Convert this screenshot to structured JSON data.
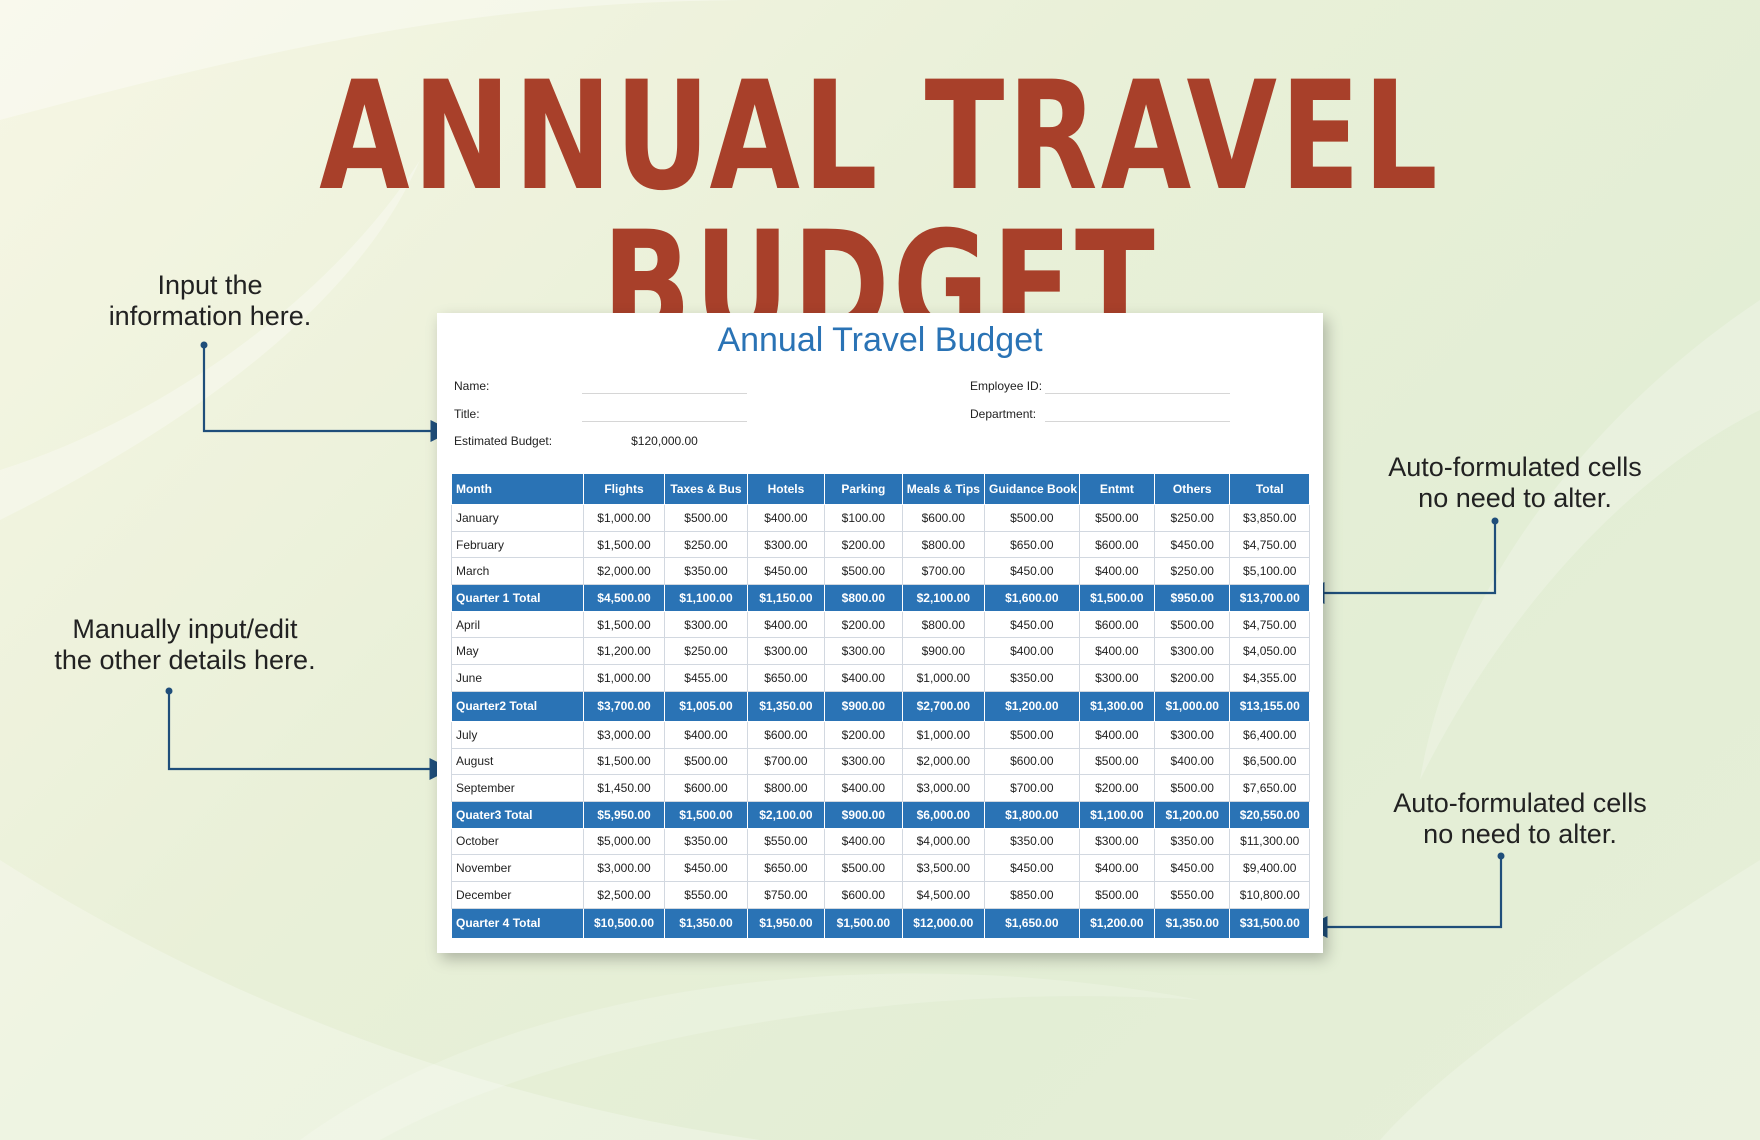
{
  "page": {
    "title": "ANNUAL TRAVEL BUDGET",
    "notes": {
      "input_info": [
        "Input the",
        "information here."
      ],
      "manual_edit": [
        "Manually input/edit",
        "the other details here."
      ],
      "auto_top": [
        "Auto-formulated cells",
        "no need to alter."
      ],
      "auto_bottom": [
        "Auto-formulated cells",
        "no need to alter."
      ]
    },
    "colors": {
      "title": "#a8402a",
      "accent_blue": "#2a73b5",
      "arrow": "#1f4e7a"
    }
  },
  "sheet": {
    "title": "Annual Travel Budget",
    "fields": {
      "name_label": "Name:",
      "title_label": "Title:",
      "budget_label": "Estimated Budget:",
      "budget_value": "$120,000.00",
      "employee_label": "Employee ID:",
      "department_label": "Department:"
    },
    "table": {
      "headers": [
        "Month",
        "Flights",
        "Taxes & Bus",
        "Hotels",
        "Parking",
        "Meals & Tips",
        "Guidance Book",
        "Entmt",
        "Others",
        "Total"
      ],
      "rows": [
        {
          "total": false,
          "cells": [
            "January",
            "$1,000.00",
            "$500.00",
            "$400.00",
            "$100.00",
            "$600.00",
            "$500.00",
            "$500.00",
            "$250.00",
            "$3,850.00"
          ]
        },
        {
          "total": false,
          "cells": [
            "February",
            "$1,500.00",
            "$250.00",
            "$300.00",
            "$200.00",
            "$800.00",
            "$650.00",
            "$600.00",
            "$450.00",
            "$4,750.00"
          ]
        },
        {
          "total": false,
          "cells": [
            "March",
            "$2,000.00",
            "$350.00",
            "$450.00",
            "$500.00",
            "$700.00",
            "$450.00",
            "$400.00",
            "$250.00",
            "$5,100.00"
          ]
        },
        {
          "total": true,
          "cells": [
            "Quarter 1 Total",
            "$4,500.00",
            "$1,100.00",
            "$1,150.00",
            "$800.00",
            "$2,100.00",
            "$1,600.00",
            "$1,500.00",
            "$950.00",
            "$13,700.00"
          ]
        },
        {
          "total": false,
          "cells": [
            "April",
            "$1,500.00",
            "$300.00",
            "$400.00",
            "$200.00",
            "$800.00",
            "$450.00",
            "$600.00",
            "$500.00",
            "$4,750.00"
          ]
        },
        {
          "total": false,
          "cells": [
            "May",
            "$1,200.00",
            "$250.00",
            "$300.00",
            "$300.00",
            "$900.00",
            "$400.00",
            "$400.00",
            "$300.00",
            "$4,050.00"
          ]
        },
        {
          "total": false,
          "cells": [
            "June",
            "$1,000.00",
            "$455.00",
            "$650.00",
            "$400.00",
            "$1,000.00",
            "$350.00",
            "$300.00",
            "$200.00",
            "$4,355.00"
          ]
        },
        {
          "total": true,
          "cells": [
            "Quarter2 Total",
            "$3,700.00",
            "$1,005.00",
            "$1,350.00",
            "$900.00",
            "$2,700.00",
            "$1,200.00",
            "$1,300.00",
            "$1,000.00",
            "$13,155.00"
          ]
        },
        {
          "total": false,
          "cells": [
            "July",
            "$3,000.00",
            "$400.00",
            "$600.00",
            "$200.00",
            "$1,000.00",
            "$500.00",
            "$400.00",
            "$300.00",
            "$6,400.00"
          ]
        },
        {
          "total": false,
          "cells": [
            "August",
            "$1,500.00",
            "$500.00",
            "$700.00",
            "$300.00",
            "$2,000.00",
            "$600.00",
            "$500.00",
            "$400.00",
            "$6,500.00"
          ]
        },
        {
          "total": false,
          "cells": [
            "September",
            "$1,450.00",
            "$600.00",
            "$800.00",
            "$400.00",
            "$3,000.00",
            "$700.00",
            "$200.00",
            "$500.00",
            "$7,650.00"
          ]
        },
        {
          "total": true,
          "cells": [
            "Quater3 Total",
            "$5,950.00",
            "$1,500.00",
            "$2,100.00",
            "$900.00",
            "$6,000.00",
            "$1,800.00",
            "$1,100.00",
            "$1,200.00",
            "$20,550.00"
          ]
        },
        {
          "total": false,
          "cells": [
            "October",
            "$5,000.00",
            "$350.00",
            "$550.00",
            "$400.00",
            "$4,000.00",
            "$350.00",
            "$300.00",
            "$350.00",
            "$11,300.00"
          ]
        },
        {
          "total": false,
          "cells": [
            "November",
            "$3,000.00",
            "$450.00",
            "$650.00",
            "$500.00",
            "$3,500.00",
            "$450.00",
            "$400.00",
            "$450.00",
            "$9,400.00"
          ]
        },
        {
          "total": false,
          "cells": [
            "December",
            "$2,500.00",
            "$550.00",
            "$750.00",
            "$600.00",
            "$4,500.00",
            "$850.00",
            "$500.00",
            "$550.00",
            "$10,800.00"
          ]
        },
        {
          "total": true,
          "cells": [
            "Quarter 4 Total",
            "$10,500.00",
            "$1,350.00",
            "$1,950.00",
            "$1,500.00",
            "$12,000.00",
            "$1,650.00",
            "$1,200.00",
            "$1,350.00",
            "$31,500.00"
          ]
        }
      ]
    }
  }
}
